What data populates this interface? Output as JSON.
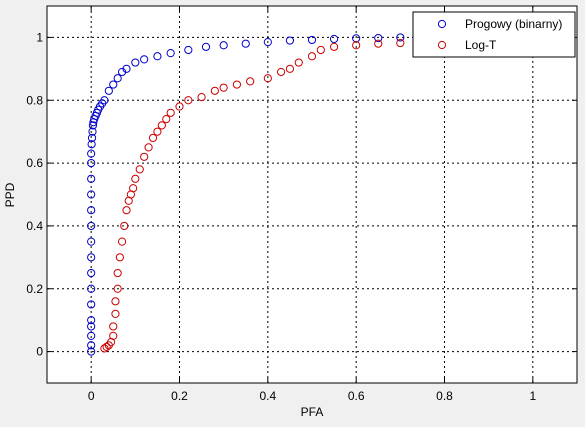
{
  "chart_data": {
    "type": "scatter",
    "xlabel": "PFA",
    "ylabel": "PPD",
    "xlim": [
      -0.1,
      1.1
    ],
    "ylim": [
      -0.1,
      1.1
    ],
    "xticks": [
      0,
      0.2,
      0.4,
      0.6,
      0.8,
      1
    ],
    "yticks": [
      0,
      0.2,
      0.4,
      0.6,
      0.8,
      1
    ],
    "xtick_labels": [
      "0",
      "0.2",
      "0.4",
      "0.6",
      "0.8",
      "1"
    ],
    "ytick_labels": [
      "0",
      "0.2",
      "0.4",
      "0.6",
      "0.8",
      "1"
    ],
    "grid": true,
    "legend_position": "top-right",
    "marker": "open-circle",
    "series": [
      {
        "name": "Progowy (binarny)",
        "color": "#0000cc",
        "x": [
          0,
          0,
          0,
          0,
          0,
          0,
          0,
          0,
          0,
          0,
          0,
          0,
          0,
          0,
          0,
          0,
          0.001,
          0.002,
          0.003,
          0.004,
          0.005,
          0.007,
          0.01,
          0.013,
          0.016,
          0.02,
          0.025,
          0.03,
          0.04,
          0.05,
          0.06,
          0.07,
          0.08,
          0.1,
          0.12,
          0.15,
          0.18,
          0.22,
          0.26,
          0.3,
          0.35,
          0.4,
          0.45,
          0.5,
          0.55,
          0.6,
          0.65,
          0.7
        ],
        "y": [
          0,
          0.02,
          0.05,
          0.08,
          0.1,
          0.15,
          0.2,
          0.25,
          0.3,
          0.35,
          0.4,
          0.45,
          0.5,
          0.55,
          0.6,
          0.63,
          0.66,
          0.68,
          0.7,
          0.72,
          0.73,
          0.74,
          0.75,
          0.76,
          0.77,
          0.78,
          0.79,
          0.8,
          0.83,
          0.85,
          0.87,
          0.89,
          0.9,
          0.92,
          0.93,
          0.94,
          0.95,
          0.96,
          0.97,
          0.975,
          0.98,
          0.985,
          0.99,
          0.992,
          0.995,
          0.997,
          0.998,
          1.0
        ]
      },
      {
        "name": "Log-T",
        "color": "#cc0000",
        "x": [
          0.03,
          0.035,
          0.04,
          0.045,
          0.05,
          0.05,
          0.055,
          0.055,
          0.06,
          0.06,
          0.065,
          0.07,
          0.075,
          0.08,
          0.085,
          0.09,
          0.095,
          0.1,
          0.11,
          0.12,
          0.13,
          0.14,
          0.15,
          0.16,
          0.17,
          0.18,
          0.2,
          0.22,
          0.25,
          0.28,
          0.3,
          0.33,
          0.36,
          0.4,
          0.43,
          0.45,
          0.47,
          0.5,
          0.52,
          0.55,
          0.6,
          0.65,
          0.7,
          0.75,
          0.8,
          0.85,
          0.9,
          0.95,
          1.0
        ],
        "y": [
          0.01,
          0.015,
          0.02,
          0.03,
          0.05,
          0.08,
          0.12,
          0.16,
          0.2,
          0.25,
          0.3,
          0.35,
          0.4,
          0.45,
          0.48,
          0.5,
          0.52,
          0.55,
          0.58,
          0.62,
          0.65,
          0.68,
          0.7,
          0.72,
          0.74,
          0.76,
          0.78,
          0.8,
          0.81,
          0.83,
          0.84,
          0.85,
          0.86,
          0.87,
          0.89,
          0.9,
          0.92,
          0.94,
          0.96,
          0.97,
          0.975,
          0.98,
          0.982,
          0.985,
          0.987,
          0.99,
          0.992,
          0.995,
          0.998
        ]
      }
    ]
  }
}
